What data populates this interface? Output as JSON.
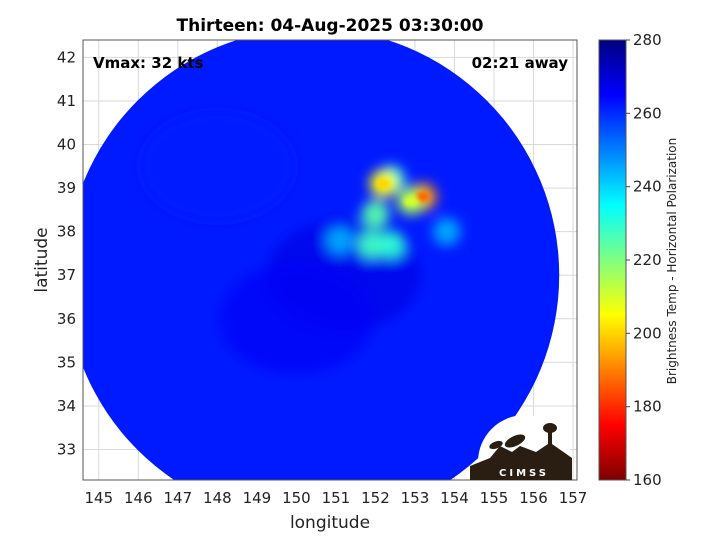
{
  "chart_data": {
    "type": "heatmap",
    "title": "Thirteen: 04-Aug-2025 03:30:00",
    "xlabel": "longitude",
    "ylabel": "latitude",
    "xlim": [
      144.6,
      157.1
    ],
    "ylim": [
      32.3,
      42.4
    ],
    "x_ticks": [
      "145",
      "146",
      "147",
      "148",
      "149",
      "150",
      "151",
      "152",
      "153",
      "154",
      "155",
      "156",
      "157"
    ],
    "y_ticks": [
      "33",
      "34",
      "35",
      "36",
      "37",
      "38",
      "39",
      "40",
      "41",
      "42"
    ],
    "grid": true,
    "annotations": {
      "vmax": "Vmax: 32 kts",
      "time_away": "02:21 away"
    },
    "colorbar": {
      "label": "Brightness Temp - Horizontal Polarization",
      "range": [
        160,
        280
      ],
      "ticks": [
        "160",
        "180",
        "200",
        "220",
        "240",
        "260",
        "280"
      ],
      "colormap": "jet"
    },
    "swath": {
      "center": [
        150.4,
        37.0
      ],
      "background_value": 262,
      "features": [
        {
          "lon": 151.2,
          "lat": 37.0,
          "value": 268
        },
        {
          "lon": 150.0,
          "lat": 36.0,
          "value": 266
        },
        {
          "lon": 148.0,
          "lat": 39.5,
          "value": 262
        },
        {
          "lon": 152.4,
          "lat": 39.2,
          "value": 230
        },
        {
          "lon": 152.2,
          "lat": 39.1,
          "value": 205
        },
        {
          "lon": 153.2,
          "lat": 38.8,
          "value": 192
        },
        {
          "lon": 152.9,
          "lat": 38.7,
          "value": 215
        },
        {
          "lon": 152.0,
          "lat": 38.4,
          "value": 225
        },
        {
          "lon": 152.4,
          "lat": 37.7,
          "value": 230
        },
        {
          "lon": 151.9,
          "lat": 37.7,
          "value": 228
        },
        {
          "lon": 153.8,
          "lat": 38.0,
          "value": 245
        },
        {
          "lon": 151.1,
          "lat": 37.8,
          "value": 245
        }
      ]
    }
  },
  "logo": {
    "text": "CIMSS"
  },
  "colors": {
    "swath_background": "#1a4be6",
    "plot_background": "#ffffff",
    "grid": "#d9d9d9"
  }
}
